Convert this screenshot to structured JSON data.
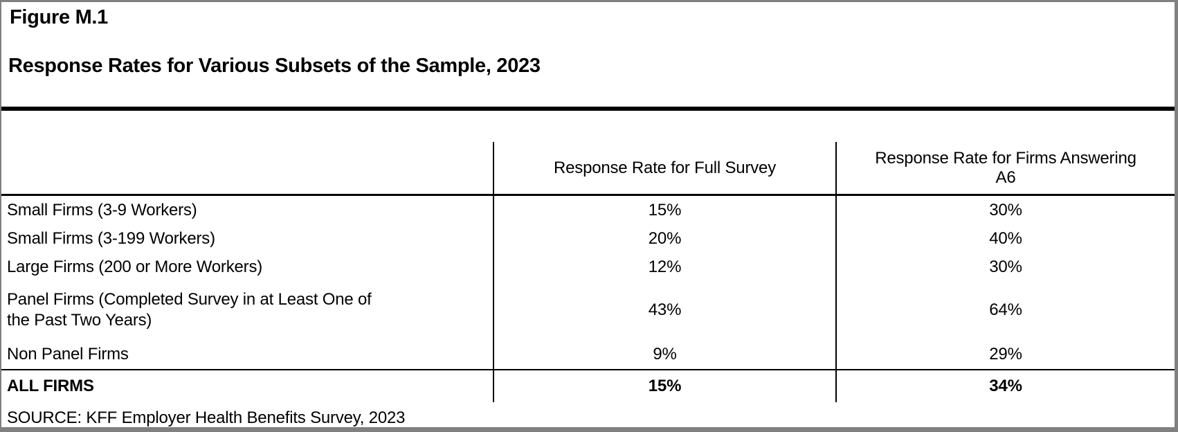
{
  "figure": {
    "label": "Figure M.1",
    "title": "Response Rates for Various Subsets of the Sample, 2023"
  },
  "table": {
    "col2_header": "Response Rate for Full Survey",
    "col3_header": "Response Rate for Firms Answering A6",
    "rows": [
      {
        "label": "Small Firms (3-9 Workers)",
        "full_survey": "15%",
        "a6": "30%"
      },
      {
        "label": "Small Firms (3-199 Workers)",
        "full_survey": "20%",
        "a6": "40%"
      },
      {
        "label": "Large Firms (200 or More Workers)",
        "full_survey": "12%",
        "a6": "30%"
      },
      {
        "label": "Panel Firms (Completed Survey in at Least One of the Past Two Years)",
        "full_survey": "43%",
        "a6": "64%"
      },
      {
        "label": "Non Panel Firms",
        "full_survey": "9%",
        "a6": "29%"
      }
    ],
    "total_row": {
      "label": "ALL FIRMS",
      "full_survey": "15%",
      "a6": "34%"
    }
  },
  "source": "SOURCE: KFF Employer Health Benefits Survey, 2023",
  "colors": {
    "text": "#000000",
    "rule": "#000000",
    "outer_border": "#808080",
    "background": "#ffffff"
  }
}
